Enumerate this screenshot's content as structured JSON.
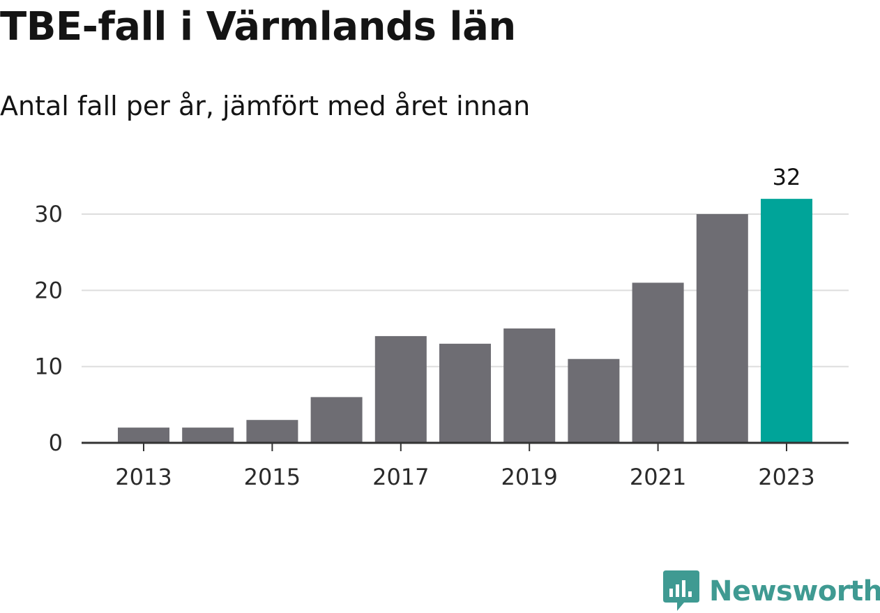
{
  "chart_data": {
    "type": "bar",
    "title": "TBE-fall i Värmlands län",
    "subtitle": "Antal fall per år, jämfört med året innan",
    "xlabel": "",
    "ylabel": "",
    "categories": [
      "2013",
      "2014",
      "2015",
      "2016",
      "2017",
      "2018",
      "2019",
      "2020",
      "2021",
      "2022",
      "2023"
    ],
    "values": [
      2,
      2,
      3,
      6,
      14,
      13,
      15,
      11,
      21,
      30,
      32
    ],
    "ylim": [
      0,
      33
    ],
    "yticks": [
      0,
      10,
      20,
      30
    ],
    "xtick_labels": [
      "2013",
      "2015",
      "2017",
      "2019",
      "2021",
      "2023"
    ],
    "highlight_index": 10,
    "annotations": [
      {
        "category": "2023",
        "text": "32"
      }
    ],
    "grid": "horizontal",
    "colors": {
      "bar": "#6e6d73",
      "highlight": "#00a499",
      "grid": "#dddddd",
      "axis": "#333333"
    }
  },
  "branding": {
    "name": "Newsworthy",
    "icon": "newsworthy-logo-icon",
    "color": "#3f9a92"
  }
}
